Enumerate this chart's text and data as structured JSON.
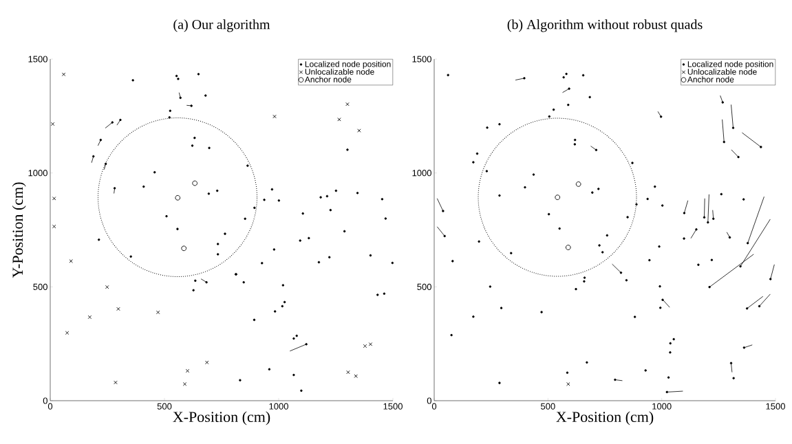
{
  "chart_data": [
    {
      "type": "scatter",
      "title": "(a) Our algorithm",
      "xlabel": "X-Position (cm)",
      "ylabel": "Y-Position (cm)",
      "xlim": [
        0,
        1500
      ],
      "ylim": [
        0,
        1500
      ],
      "xticks": [
        0,
        500,
        1000,
        1500
      ],
      "yticks": [
        0,
        500,
        1000,
        1500
      ],
      "legend": "top right",
      "series": [
        {
          "type": "line",
          "color": "#000000",
          "line_style": "solid",
          "marker": "none",
          "x": [
            272,
            241,
            null,
            221,
            209,
            null,
            189,
            181,
            null,
            243,
            236,
            null,
            282,
            279,
            null,
            307,
            292,
            null,
            570,
            564,
            null,
            618,
            597,
            null,
            684,
            660,
            null,
            1121,
            1049,
            null
          ],
          "values": [
            1222,
            1197,
            null,
            1145,
            1120,
            null,
            1073,
            1045,
            null,
            1040,
            1015,
            null,
            933,
            910,
            null,
            1233,
            1210,
            null,
            1330,
            1353,
            null,
            1295,
            1297,
            null,
            520,
            535,
            null,
            248,
            218,
            null
          ]
        },
        {
          "name": "Localized node position",
          "color": "#000000",
          "marker": "circle",
          "x": [
            272,
            221,
            189,
            243,
            282,
            213,
            307,
            362,
            553,
            560,
            649,
            570,
            680,
            618,
            525,
            522,
            632,
            622,
            696,
            457,
            409,
            694,
            731,
            509,
            557,
            765,
            734,
            734,
            353,
            812,
            635,
            684,
            627,
            1301,
            864,
            971,
            937,
            1001,
            894,
            853,
            1106,
            1184,
            1212,
            1251,
            1227,
            1288,
            1094,
            1132,
            980,
            927,
            1176,
            1222,
            814,
            847,
            1019,
            1026,
            1016,
            984,
            893,
            1079,
            1066,
            1121,
            959,
            1066,
            831,
            1099,
            1345,
            1453,
            1468,
            1402,
            1433,
            1462,
            1498
          ],
          "values": [
            1222,
            1145,
            1073,
            1040,
            933,
            707,
            1233,
            1407,
            1426,
            1413,
            1434,
            1330,
            1340,
            1295,
            1273,
            1244,
            1154,
            1120,
            1110,
            1003,
            940,
            909,
            922,
            810,
            754,
            733,
            688,
            643,
            633,
            555,
            527,
            520,
            485,
            1102,
            1032,
            928,
            882,
            879,
            847,
            799,
            822,
            893,
            898,
            922,
            837,
            744,
            703,
            714,
            664,
            604,
            608,
            630,
            555,
            520,
            507,
            433,
            415,
            392,
            355,
            285,
            273,
            248,
            138,
            113,
            90,
            44,
            912,
            885,
            800,
            638,
            465,
            470,
            605
          ]
        },
        {
          "name": "Unlocalizable node",
          "color": "#000000",
          "marker": "cross",
          "x": [
            59,
            11,
            17,
            17,
            91,
            249,
            298,
            173,
            74,
            286,
            472,
            686,
            601,
            589,
            1301,
            982,
            1265,
            1304,
            1352,
            1338,
            1378,
            1402
          ],
          "values": [
            1433,
            1215,
            888,
            765,
            613,
            499,
            403,
            367,
            298,
            80,
            388,
            168,
            131,
            73,
            1302,
            1248,
            1235,
            125,
            1186,
            108,
            240,
            248
          ]
        },
        {
          "name": "Anchor node",
          "color": "#000000",
          "marker": "circle",
          "x": [
            633,
            558,
            585
          ],
          "values": [
            955,
            891,
            669
          ]
        }
      ]
    },
    {
      "type": "scatter",
      "title": "(b) Algorithm without robust quads",
      "xlabel": "X-Position (cm)",
      "xlim": [
        0,
        1500
      ],
      "ylim": [
        0,
        1500
      ],
      "xticks": [
        0,
        500,
        1000,
        1500
      ],
      "yticks": [
        0,
        500,
        1000,
        1500
      ],
      "legend": "top right",
      "series": [
        {
          "type": "line",
          "color": "#000000",
          "line_style": "solid",
          "marker": "none",
          "x": [
            396,
            357,
            null,
            39,
            13,
            null,
            46,
            13,
            null,
            593,
            564,
            null,
            712,
            688,
            null,
            821,
            782,
            null,
            795,
            827,
            null,
            997,
            983,
            null,
            1268,
            1257,
            null,
            1314,
            1305,
            null,
            1274,
            1266,
            null,
            1436,
            1353,
            null,
            1337,
            1306,
            null,
            1099,
            1115,
            null,
            1187,
            1189,
            null,
            1203,
            1208,
            null,
            1227,
            1224,
            null,
            1152,
            1128,
            null,
            1299,
            1286,
            null,
            1378,
            1450,
            null,
            1346,
            1477,
            null,
            1210,
            1404,
            null,
            1478,
            1495,
            null,
            1375,
            1445,
            null,
            1429,
            1477,
            null,
            1003,
            1035,
            null,
            1362,
            1398,
            null,
            1305,
            1309,
            null,
            1023,
            1093,
            null
          ],
          "values": [
            1416,
            1408,
            null,
            833,
            888,
            null,
            723,
            764,
            null,
            1370,
            1353,
            null,
            1101,
            1118,
            null,
            562,
            600,
            null,
            92,
            88,
            null,
            1247,
            1270,
            null,
            1310,
            1340,
            null,
            1198,
            1300,
            null,
            1136,
            1235,
            null,
            1114,
            1177,
            null,
            1070,
            1102,
            null,
            824,
            879,
            null,
            805,
            888,
            null,
            783,
            906,
            null,
            799,
            837,
            null,
            752,
            713,
            null,
            717,
            740,
            null,
            692,
            896,
            null,
            590,
            797,
            null,
            499,
            643,
            null,
            534,
            598,
            null,
            405,
            458,
            null,
            415,
            468,
            null,
            445,
            410,
            null,
            233,
            245,
            null,
            165,
            125,
            null,
            38,
            42,
            null
          ]
        },
        {
          "name": "Localized node position",
          "color": "#000000",
          "marker": "circle",
          "x": [
            61,
            396,
            233,
            287,
            189,
            172,
            231,
            437,
            399,
            287,
            39,
            46,
            197,
            81,
            246,
            295,
            172,
            472,
            76,
            287,
            338,
            581,
            569,
            655,
            593,
            684,
            589,
            525,
            506,
            619,
            618,
            712,
            871,
            695,
            722,
            504,
            551,
            850,
            889,
            760,
            726,
            740,
            821,
            845,
            659,
            661,
            623,
            938,
            970,
            989,
            946,
            992,
            1004,
            994,
            882,
            671,
            585,
            795,
            929,
            997,
            1268,
            1314,
            1274,
            1436,
            1337,
            1003,
            1099,
            1187,
            1203,
            1227,
            1262,
            1360,
            1098,
            1152,
            1299,
            1378,
            1346,
            1210,
            1478,
            1161,
            1220,
            1375,
            1429,
            1038,
            1053,
            1037,
            1362,
            1305,
            1316,
            1030,
            1023
          ],
          "values": [
            1430,
            1416,
            1199,
            1214,
            1085,
            1047,
            1008,
            993,
            937,
            901,
            833,
            723,
            699,
            613,
            501,
            407,
            369,
            389,
            288,
            78,
            648,
            1435,
            1420,
            1429,
            1370,
            1333,
            1299,
            1278,
            1248,
            1145,
            1126,
            1101,
            1044,
            914,
            930,
            819,
            756,
            806,
            862,
            726,
            682,
            652,
            562,
            529,
            524,
            540,
            490,
            886,
            940,
            677,
            617,
            502,
            443,
            408,
            368,
            168,
            123,
            92,
            133,
            1247,
            1310,
            1198,
            1136,
            1114,
            1070,
            857,
            824,
            805,
            783,
            799,
            907,
            884,
            712,
            752,
            717,
            692,
            590,
            499,
            534,
            597,
            618,
            405,
            415,
            252,
            270,
            212,
            233,
            165,
            99,
            102,
            38
          ]
        },
        {
          "name": "Unlocalizable node",
          "color": "#000000",
          "marker": "cross",
          "x": [
            589
          ],
          "values": [
            73
          ]
        },
        {
          "name": "Anchor node",
          "color": "#000000",
          "marker": "circle",
          "x": [
            634,
            542,
            589
          ],
          "values": [
            951,
            893,
            673
          ]
        }
      ]
    }
  ]
}
